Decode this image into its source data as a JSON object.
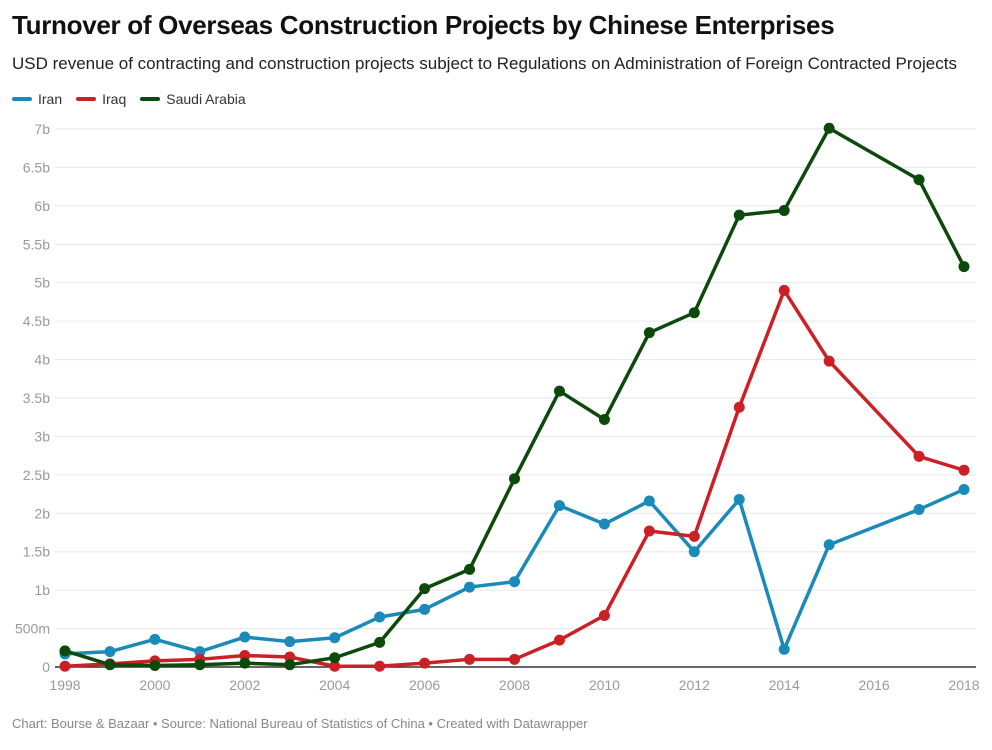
{
  "chart_data": {
    "type": "line",
    "title": "Turnover of Overseas Construction Projects by Chinese Enterprises",
    "subtitle": "USD revenue of contracting and construction projects subject to Regulations on Administration of Foreign Contracted Projects",
    "xlabel": "",
    "ylabel": "",
    "x": [
      1998,
      1999,
      2000,
      2001,
      2002,
      2003,
      2004,
      2005,
      2006,
      2007,
      2008,
      2009,
      2010,
      2011,
      2012,
      2013,
      2014,
      2015,
      2017,
      2018
    ],
    "series": [
      {
        "name": "Iran",
        "color": "#1a8ab8",
        "values": [
          0.17,
          0.2,
          0.36,
          0.2,
          0.39,
          0.33,
          0.38,
          0.65,
          0.75,
          1.04,
          1.11,
          2.1,
          1.86,
          2.16,
          1.5,
          2.18,
          0.23,
          1.59,
          2.05,
          2.31
        ]
      },
      {
        "name": "Iraq",
        "color": "#cc2027",
        "values": [
          0.01,
          0.04,
          0.08,
          0.1,
          0.15,
          0.13,
          0.01,
          0.01,
          0.05,
          0.1,
          0.1,
          0.35,
          0.67,
          1.77,
          1.7,
          3.38,
          4.9,
          3.98,
          2.74,
          2.56
        ]
      },
      {
        "name": "Saudi Arabia",
        "color": "#0c4a0c",
        "values": [
          0.21,
          0.03,
          0.02,
          0.03,
          0.05,
          0.03,
          0.12,
          0.32,
          1.02,
          1.27,
          2.45,
          3.59,
          3.22,
          4.35,
          4.61,
          5.88,
          5.94,
          7.01,
          6.34,
          5.21
        ]
      }
    ],
    "value_unit": "billion USD",
    "xlim": [
      1998,
      2018
    ],
    "ylim": [
      0,
      7
    ],
    "x_ticks": [
      1998,
      2000,
      2002,
      2004,
      2006,
      2008,
      2010,
      2012,
      2014,
      2016,
      2018
    ],
    "x_tick_labels": [
      "1998",
      "2000",
      "2002",
      "2004",
      "2006",
      "2008",
      "2010",
      "2012",
      "2014",
      "2016",
      "2018"
    ],
    "y_ticks": [
      0,
      0.5,
      1,
      1.5,
      2,
      2.5,
      3,
      3.5,
      4,
      4.5,
      5,
      5.5,
      6,
      6.5,
      7
    ],
    "y_tick_labels": [
      "0",
      "500m",
      "1b",
      "1.5b",
      "2b",
      "2.5b",
      "3b",
      "3.5b",
      "4b",
      "4.5b",
      "5b",
      "5.5b",
      "6b",
      "6.5b",
      "7b"
    ],
    "grid": true,
    "legend_position": "top-left"
  },
  "legend": {
    "items": [
      {
        "label": "Iran",
        "color": "#1a8ab8"
      },
      {
        "label": "Iraq",
        "color": "#cc2027"
      },
      {
        "label": "Saudi Arabia",
        "color": "#0c4a0c"
      }
    ]
  },
  "footer": {
    "text": "Chart: Bourse & Bazaar • Source: National Bureau of Statistics of China • Created with Datawrapper"
  }
}
